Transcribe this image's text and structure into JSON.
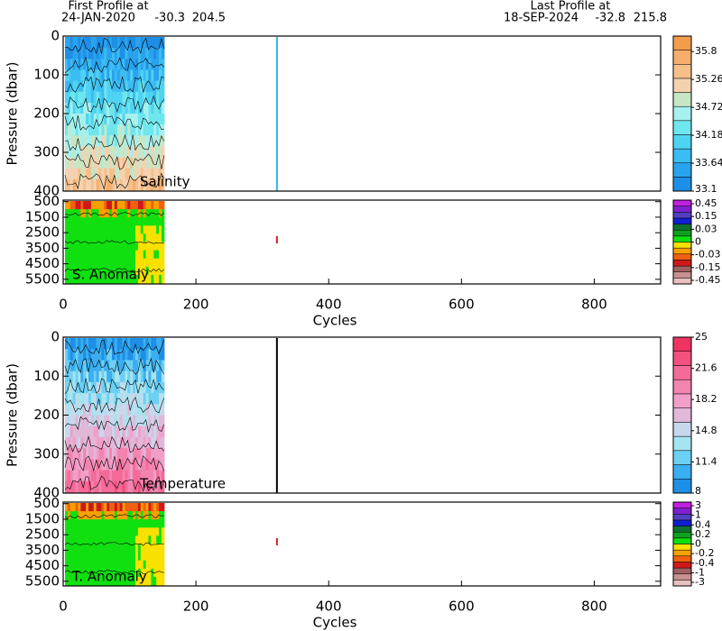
{
  "header": {
    "first_label": "First Profile at",
    "first_date": "24-JAN-2020",
    "first_lat": -30.3,
    "first_lon": 204.5,
    "last_label": "Last Profile at",
    "last_date": "18-SEP-2024",
    "last_lat": -32.8,
    "last_lon": 215.8
  },
  "chart_data": [
    {
      "type": "contour",
      "label": "Salinity",
      "ylabel": "Pressure (dbar)",
      "xlim": [
        0,
        900
      ],
      "ylim": [
        400,
        0
      ],
      "yticks": [
        0,
        100,
        200,
        300,
        400
      ],
      "colorbar": {
        "scale": "linear",
        "clim": [
          33.1,
          36.1
        ],
        "ticks": [
          33.1,
          33.64,
          34.18,
          34.72,
          35.26,
          35.8
        ],
        "colors": [
          "#1e8fe6",
          "#2aa3ee",
          "#3bbcf2",
          "#4fd3f2",
          "#6ee6ee",
          "#a6f0ee",
          "#c6e6c6",
          "#f4d2b0",
          "#f6bf8a",
          "#f5ae6c",
          "#f39c4c"
        ]
      }
    },
    {
      "type": "contour",
      "label": "S. Anomaly",
      "xlabel": "Cycles",
      "xlim": [
        0,
        900
      ],
      "xticks": [
        0,
        200,
        400,
        600,
        800
      ],
      "ylim": [
        5800,
        400
      ],
      "yticks": [
        500,
        1500,
        2500,
        3500,
        4500,
        5500
      ],
      "colorbar": {
        "scale": "category",
        "ticks": [
          0.45,
          0.15,
          0.03,
          0,
          -0.03,
          -0.15,
          -0.45
        ],
        "colors": [
          "#e8c0c0",
          "#c89090",
          "#a06060",
          "#d01818",
          "#f06010",
          "#f8a000",
          "#f8e000",
          "#10e010",
          "#10a020",
          "#107030",
          "#1020d0",
          "#5040c0",
          "#8020d0",
          "#c020e0"
        ]
      }
    },
    {
      "type": "contour",
      "label": "Temperature",
      "ylabel": "Pressure (dbar)",
      "xlim": [
        0,
        900
      ],
      "ylim": [
        400,
        0
      ],
      "yticks": [
        0,
        100,
        200,
        300,
        400
      ],
      "colorbar": {
        "scale": "linear",
        "clim": [
          8,
          25
        ],
        "ticks": [
          8,
          11.4,
          14.8,
          18.2,
          21.6,
          25
        ],
        "colors": [
          "#1e8fe6",
          "#3aaef0",
          "#6cd0f4",
          "#a6e4f0",
          "#c8d8ec",
          "#e0b8d8",
          "#f0a0c8",
          "#f284b0",
          "#f46a98",
          "#f2507e",
          "#ee3462"
        ]
      }
    },
    {
      "type": "contour",
      "label": "T. Anomaly",
      "xlabel": "Cycles",
      "xlim": [
        0,
        900
      ],
      "xticks": [
        0,
        200,
        400,
        600,
        800
      ],
      "ylim": [
        5800,
        400
      ],
      "yticks": [
        500,
        1500,
        2500,
        3500,
        4500,
        5500
      ],
      "colorbar": {
        "scale": "category",
        "ticks": [
          3,
          1,
          0.4,
          0.2,
          0,
          -0.2,
          -0.4,
          -1,
          -3
        ],
        "colors": [
          "#e8c0c0",
          "#c89090",
          "#a06060",
          "#d01818",
          "#f06010",
          "#f8a000",
          "#f8e000",
          "#10e010",
          "#10a020",
          "#107030",
          "#1020d0",
          "#5040c0",
          "#8020d0",
          "#c020e0"
        ]
      }
    }
  ]
}
